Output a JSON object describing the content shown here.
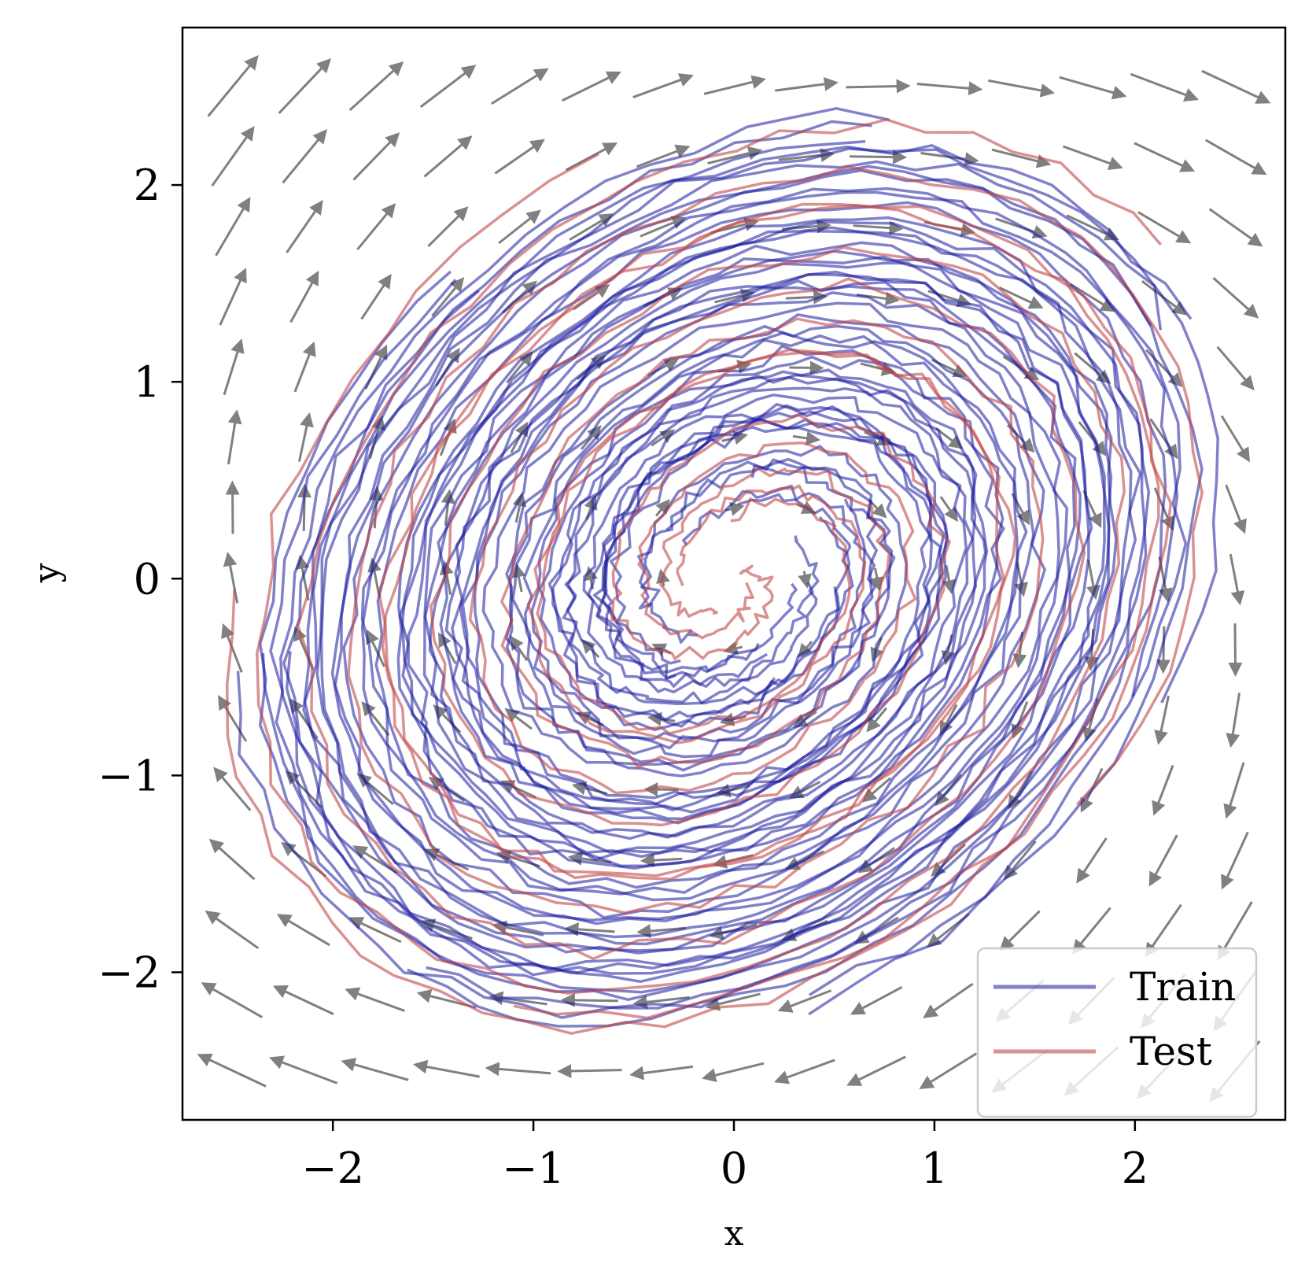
{
  "chart_data": {
    "type": "line",
    "title": "",
    "xlabel": "x",
    "ylabel": "y",
    "xlim": [
      -2.75,
      2.75
    ],
    "ylim": [
      -2.75,
      2.8
    ],
    "xticks": [
      -2,
      -1,
      0,
      1,
      2
    ],
    "xtick_labels": [
      "−2",
      "−1",
      "0",
      "1",
      "2"
    ],
    "yticks": [
      -2,
      -1,
      0,
      1,
      2
    ],
    "ytick_labels": [
      "−2",
      "−1",
      "0",
      "1",
      "2"
    ],
    "grid": false,
    "legend_position": "lower-right",
    "legend": [
      {
        "label": "Train",
        "color": "#1a1a9c"
      },
      {
        "label": "Test",
        "color": "#c0474a"
      }
    ],
    "vector_field": {
      "color": "#808080",
      "description_type": "quiver",
      "x_range": [
        -2.5,
        2.5
      ],
      "y_range": [
        -2.5,
        2.5
      ],
      "grid_size": 15
    },
    "series": [
      {
        "name": "Train",
        "color": "#1a1a9c",
        "opacity": 0.55,
        "trajectory_count": 18,
        "spiral": {
          "r_start": 0.35,
          "r_end": 2.7,
          "turns": 2.6,
          "phase_step": 0.9,
          "tilt_deg": 40,
          "aspect": 0.78
        }
      },
      {
        "name": "Test",
        "color": "#c0474a",
        "opacity": 0.6,
        "trajectory_count": 5,
        "spiral": {
          "r_start": 0.05,
          "r_end": 2.8,
          "turns": 2.8,
          "phase_step": 1.3,
          "tilt_deg": 40,
          "aspect": 0.78
        }
      }
    ]
  }
}
